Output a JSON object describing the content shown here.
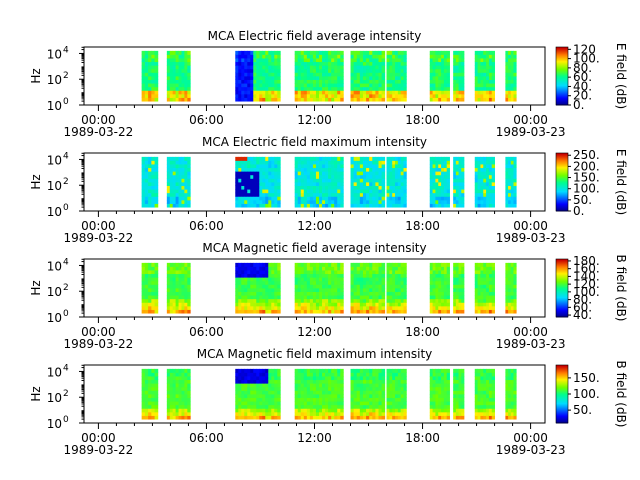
{
  "chart_data": [
    {
      "type": "heatmap",
      "title": "MCA  Electric field average intensity",
      "ylabel": "Hz",
      "colorbar_label": "E field (dB)",
      "colorbar_ticks": [
        "120",
        "100.",
        "80.",
        "60.",
        "40.",
        "20.",
        "0."
      ],
      "colorbar_range": [
        0,
        125
      ],
      "x_ticks": [
        "00:00",
        "06:00",
        "12:00",
        "18:00",
        "00:00"
      ],
      "x_dates": [
        "1989-03-22",
        "1989-03-23"
      ],
      "y_ticks": [
        0,
        2,
        4
      ],
      "profile": "eavg"
    },
    {
      "type": "heatmap",
      "title": "MCA  Electric field maximum intensity",
      "ylabel": "Hz",
      "colorbar_label": "E field (dB)",
      "colorbar_ticks": [
        "250.",
        "200.",
        "150.",
        "100.",
        "50.",
        "0."
      ],
      "colorbar_range": [
        0,
        260
      ],
      "x_ticks": [
        "00:00",
        "06:00",
        "12:00",
        "18:00",
        "00:00"
      ],
      "x_dates": [
        "1989-03-22",
        "1989-03-23"
      ],
      "y_ticks": [
        0,
        2,
        4
      ],
      "profile": "emax"
    },
    {
      "type": "heatmap",
      "title": "MCA  Magnetic field average intensity",
      "ylabel": "Hz",
      "colorbar_label": "B field (dB)",
      "colorbar_ticks": [
        "180.",
        "160.",
        "140.",
        "120.",
        "100.",
        "80.",
        "60.",
        "40."
      ],
      "colorbar_range": [
        35,
        185
      ],
      "x_ticks": [
        "00:00",
        "06:00",
        "12:00",
        "18:00",
        "00:00"
      ],
      "x_dates": [
        "1989-03-22",
        "1989-03-23"
      ],
      "y_ticks": [
        0,
        2,
        4
      ],
      "profile": "bavg"
    },
    {
      "type": "heatmap",
      "title": "MCA  Magnetic field maximum intensity",
      "ylabel": "Hz",
      "colorbar_label": "B field (dB)",
      "colorbar_ticks": [
        "150.",
        "100.",
        "50."
      ],
      "colorbar_range": [
        10,
        190
      ],
      "x_ticks": [
        "00:00",
        "06:00",
        "12:00",
        "18:00",
        "00:00"
      ],
      "x_dates": [
        "1989-03-22",
        "1989-03-23"
      ],
      "y_ticks": [
        0,
        2,
        4
      ],
      "profile": "bmax"
    }
  ],
  "data_intervals_hours": [
    [
      2.4,
      3.3
    ],
    [
      3.8,
      5.1
    ],
    [
      7.6,
      10.1
    ],
    [
      10.9,
      13.6
    ],
    [
      14.0,
      15.9
    ],
    [
      16.0,
      17.1
    ],
    [
      18.4,
      19.5
    ],
    [
      19.7,
      20.3
    ],
    [
      20.9,
      22.0
    ],
    [
      22.6,
      23.2
    ]
  ],
  "x_range_hours": [
    -0.8,
    24.8
  ],
  "y_range_log10_hz": [
    0,
    4.5
  ]
}
